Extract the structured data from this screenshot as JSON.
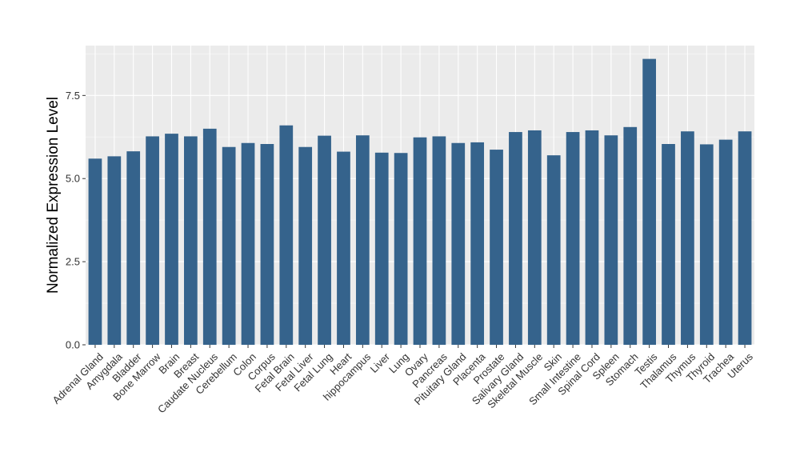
{
  "chart_data": {
    "type": "bar",
    "xlabel": "",
    "ylabel": "Normalized Expression Level",
    "ylim": [
      0,
      9
    ],
    "yticks": [
      "0.0",
      "2.5",
      "5.0",
      "7.5"
    ],
    "ytick_values": [
      0,
      2.5,
      5.0,
      7.5
    ],
    "grid": true,
    "legend": "none",
    "colors": {
      "bar": "#35638C",
      "panel": "#EBEBEB",
      "grid_major": "#FFFFFF",
      "grid_minor": "#F4F4F4",
      "tick": "#333333"
    },
    "categories": [
      "Adrenal Gland",
      "Amygdala",
      "Bladder",
      "Bone Marrow",
      "Brain",
      "Breast",
      "Caudate Nucleus",
      "Cerebellum",
      "Colon",
      "Corpus",
      "Fetal Brain",
      "Fetal Liver",
      "Fetal Lung",
      "Heart",
      "hippocampus",
      "Liver",
      "Lung",
      "Ovary",
      "Pancreas",
      "Pituitary Gland",
      "Placenta",
      "Prostate",
      "Salivary Gland",
      "Skeletal Muscle",
      "Skin",
      "Small Intestine",
      "Spinal Cord",
      "Spleen",
      "Stomach",
      "Testis",
      "Thalamus",
      "Thymus",
      "Thyroid",
      "Trachea",
      "Uterus"
    ],
    "values": [
      5.6,
      5.67,
      5.82,
      6.27,
      6.35,
      6.27,
      6.5,
      5.95,
      6.07,
      6.04,
      6.6,
      5.95,
      6.29,
      5.81,
      6.3,
      5.78,
      5.77,
      6.24,
      6.27,
      6.07,
      6.09,
      5.87,
      6.4,
      6.45,
      5.7,
      6.4,
      6.45,
      6.3,
      6.55,
      8.6,
      6.04,
      6.42,
      6.03,
      6.17,
      6.42
    ]
  }
}
